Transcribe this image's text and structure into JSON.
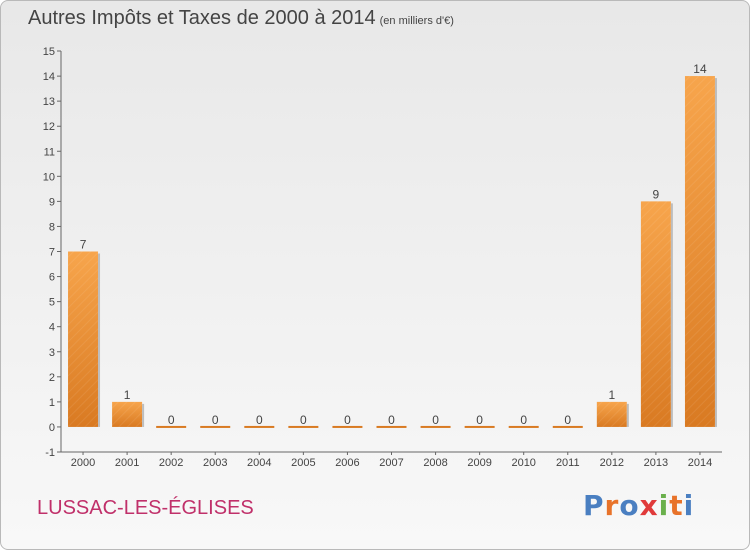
{
  "header": {
    "title": "Autres Impôts et Taxes de 2000 à 2014",
    "unit": "(en milliers d'€)"
  },
  "footer": {
    "place": "LUSSAC-LES-ÉGLISES",
    "logo": [
      "P",
      "r",
      "o",
      "x",
      "i",
      "t",
      "i"
    ]
  },
  "colors": {
    "bar_light": "#f7a54c",
    "bar_dark": "#d97a22",
    "axis": "#666666",
    "grid": "#c8c8c8",
    "logo": [
      "#4a7fc1",
      "#e8732a",
      "#4a7fc1",
      "#e03a3a",
      "#6ab04c",
      "#e8732a",
      "#4a7fc1"
    ]
  },
  "chart_data": {
    "type": "bar",
    "title": "Autres Impôts et Taxes de 2000 à 2014",
    "subtitle": "(en milliers d'€)",
    "categories": [
      "2000",
      "2001",
      "2002",
      "2003",
      "2004",
      "2005",
      "2006",
      "2007",
      "2008",
      "2009",
      "2010",
      "2011",
      "2012",
      "2013",
      "2014"
    ],
    "values": [
      7,
      1,
      0,
      0,
      0,
      0,
      0,
      0,
      0,
      0,
      0,
      0,
      1,
      9,
      14
    ],
    "labels": [
      "7",
      "1",
      "0",
      "0",
      "0",
      "0",
      "0",
      "0",
      "0",
      "0",
      "0",
      "0",
      "1",
      "9",
      "14"
    ],
    "yticks": [
      -1,
      0,
      1,
      2,
      3,
      4,
      5,
      6,
      7,
      8,
      9,
      10,
      11,
      12,
      13,
      14,
      15
    ],
    "ylim": [
      -1,
      15
    ],
    "grid": false
  }
}
